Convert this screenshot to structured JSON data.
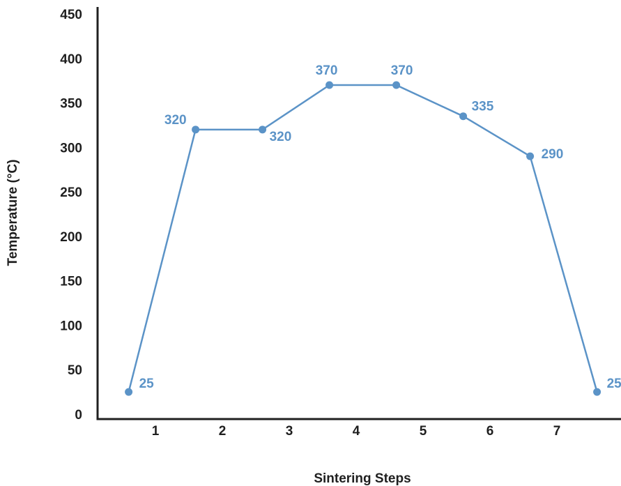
{
  "chart_data": {
    "type": "line",
    "xlabel": "Sintering Steps",
    "ylabel": "Temperature (°C)",
    "x_ticks": [
      "1",
      "2",
      "3",
      "4",
      "5",
      "6",
      "7"
    ],
    "y_ticks": [
      "0",
      "50",
      "100",
      "150",
      "200",
      "250",
      "300",
      "350",
      "400",
      "450"
    ],
    "ylim": [
      0,
      450
    ],
    "grid": false,
    "series": [
      {
        "x": [
          0.6,
          1.6,
          2.6,
          3.6,
          4.6,
          5.6,
          6.6,
          7.6
        ],
        "values": [
          25,
          320,
          320,
          370,
          370,
          335,
          290,
          25
        ],
        "labels": [
          "25",
          "320",
          "320",
          "370",
          "370",
          "335",
          "290",
          "25"
        ],
        "color": "#5b93c7"
      }
    ],
    "axis_color": "#1f1f1f"
  }
}
